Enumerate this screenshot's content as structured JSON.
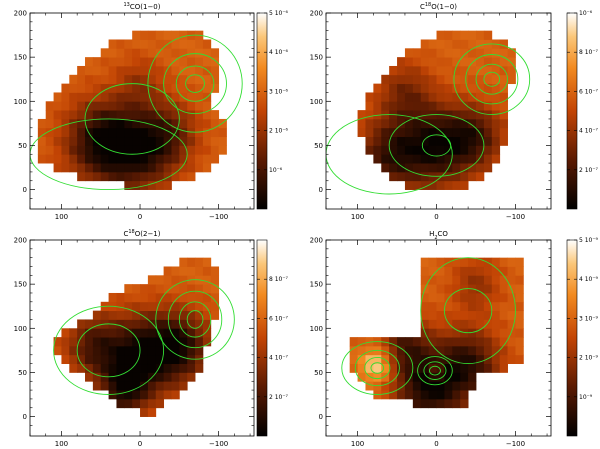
{
  "chart_data": [
    {
      "type": "heatmap",
      "title": "13CO(1-0)",
      "title_parts": [
        "13",
        "CO(1−0)"
      ],
      "xlim": [
        140,
        -145
      ],
      "ylim": [
        -22,
        200
      ],
      "x_ticks": [
        100,
        0,
        -100
      ],
      "y_ticks": [
        0,
        50,
        100,
        150,
        200
      ],
      "colorbar": {
        "range": [
          0,
          5e-06
        ],
        "ticks": [
          {
            "v": 1e-06,
            "label": "10⁻⁶"
          },
          {
            "v": 2e-06,
            "label": "2 10⁻⁶"
          },
          {
            "v": 3e-06,
            "label": "3 10⁻⁶"
          },
          {
            "v": 4e-06,
            "label": "4 10⁻⁶"
          },
          {
            "v": 5e-06,
            "label": "5 10⁻⁶"
          }
        ]
      },
      "blobs": [
        {
          "x": 50,
          "y": 55,
          "r": 45,
          "s": 1.0
        },
        {
          "x": 0,
          "y": 45,
          "r": 45,
          "s": 0.9
        },
        {
          "x": -40,
          "y": 65,
          "r": 35,
          "s": 0.5
        },
        {
          "x": 0,
          "y": 120,
          "r": 30,
          "s": 0.35
        }
      ],
      "edge": [
        [
          -90,
          100
        ],
        [
          -100,
          130
        ],
        [
          -95,
          160
        ],
        [
          -70,
          180
        ],
        [
          -30,
          185
        ],
        [
          5,
          178
        ],
        [
          40,
          165
        ],
        [
          70,
          145
        ],
        [
          100,
          115
        ],
        [
          125,
          85
        ],
        [
          135,
          55
        ],
        [
          130,
          30
        ],
        [
          100,
          20
        ],
        [
          60,
          10
        ],
        [
          20,
          5
        ],
        [
          -20,
          0
        ],
        [
          -60,
          10
        ],
        [
          -110,
          40
        ],
        [
          -115,
          70
        ]
      ],
      "contours": [
        {
          "x": -70,
          "y": 120,
          "radii": [
            [
              12,
              10
            ],
            [
              24,
              20
            ],
            [
              40,
              34
            ],
            [
              60,
              55
            ]
          ]
        },
        {
          "x": 10,
          "y": 80,
          "radii": [
            [
              60,
              40
            ]
          ]
        },
        {
          "x": 40,
          "y": 40,
          "radii": [
            [
              100,
              40
            ]
          ]
        }
      ]
    },
    {
      "type": "heatmap",
      "title": "C18O(1-0)",
      "title_parts": [
        "C",
        "18",
        "O(1−0)"
      ],
      "xlim": [
        140,
        -145
      ],
      "ylim": [
        -22,
        200
      ],
      "x_ticks": [
        100,
        0,
        -100
      ],
      "y_ticks": [
        0,
        50,
        100,
        150,
        200
      ],
      "colorbar": {
        "range": [
          0,
          1e-06
        ],
        "ticks": [
          {
            "v": 2e-07,
            "label": "2 10⁻⁷"
          },
          {
            "v": 4e-07,
            "label": "4 10⁻⁷"
          },
          {
            "v": 6e-07,
            "label": "6 10⁻⁷"
          },
          {
            "v": 8e-07,
            "label": "8 10⁻⁷"
          },
          {
            "v": 1e-06,
            "label": "10⁻⁶"
          }
        ]
      },
      "blobs": [
        {
          "x": 0,
          "y": 50,
          "r": 45,
          "s": 1.0
        },
        {
          "x": 60,
          "y": 40,
          "r": 40,
          "s": 0.8
        },
        {
          "x": -50,
          "y": 60,
          "r": 35,
          "s": 0.7
        },
        {
          "x": 40,
          "y": 110,
          "r": 35,
          "s": 0.5
        }
      ],
      "edge": [
        [
          -90,
          100
        ],
        [
          -100,
          135
        ],
        [
          -95,
          160
        ],
        [
          -70,
          175
        ],
        [
          -40,
          180
        ],
        [
          0,
          175
        ],
        [
          30,
          160
        ],
        [
          60,
          140
        ],
        [
          85,
          115
        ],
        [
          100,
          80
        ],
        [
          90,
          45
        ],
        [
          70,
          20
        ],
        [
          40,
          5
        ],
        [
          0,
          -5
        ],
        [
          -40,
          5
        ],
        [
          -70,
          25
        ],
        [
          -85,
          55
        ]
      ],
      "contours": [
        {
          "x": -70,
          "y": 125,
          "radii": [
            [
              10,
              8
            ],
            [
              20,
              17
            ],
            [
              33,
              28
            ],
            [
              48,
              40
            ]
          ]
        },
        {
          "x": 0,
          "y": 50,
          "radii": [
            [
              18,
              12
            ],
            [
              60,
              35
            ]
          ]
        },
        {
          "x": 60,
          "y": 40,
          "radii": [
            [
              80,
              45
            ]
          ]
        }
      ]
    },
    {
      "type": "heatmap",
      "title": "C18O(2-1)",
      "title_parts": [
        "C",
        "18",
        "O(2−1)"
      ],
      "xlim": [
        140,
        -145
      ],
      "ylim": [
        -22,
        200
      ],
      "x_ticks": [
        100,
        0,
        -100
      ],
      "y_ticks": [
        0,
        50,
        100,
        150,
        200
      ],
      "colorbar": {
        "range": [
          0,
          1e-06
        ],
        "ticks": [
          {
            "v": 2e-07,
            "label": "2 10⁻⁷"
          },
          {
            "v": 4e-07,
            "label": "4 10⁻⁷"
          },
          {
            "v": 6e-07,
            "label": "6 10⁻⁷"
          },
          {
            "v": 8e-07,
            "label": "8 10⁻⁷"
          }
        ]
      },
      "blobs": [
        {
          "x": 0,
          "y": 70,
          "r": 45,
          "s": 1.0
        },
        {
          "x": 60,
          "y": 80,
          "r": 35,
          "s": 0.7
        },
        {
          "x": -50,
          "y": 80,
          "r": 40,
          "s": 0.9
        },
        {
          "x": 20,
          "y": 30,
          "r": 30,
          "s": 0.8
        }
      ],
      "edge": [
        [
          -80,
          60
        ],
        [
          -90,
          100
        ],
        [
          -100,
          130
        ],
        [
          -95,
          170
        ],
        [
          -80,
          185
        ],
        [
          -55,
          180
        ],
        [
          -30,
          165
        ],
        [
          0,
          150
        ],
        [
          35,
          140
        ],
        [
          60,
          115
        ],
        [
          90,
          100
        ],
        [
          110,
          85
        ],
        [
          105,
          65
        ],
        [
          80,
          50
        ],
        [
          60,
          35
        ],
        [
          20,
          10
        ],
        [
          -10,
          0
        ],
        [
          -40,
          20
        ],
        [
          -65,
          40
        ]
      ],
      "contours": [
        {
          "x": -70,
          "y": 110,
          "radii": [
            [
              10,
              10
            ],
            [
              20,
              20
            ],
            [
              34,
              32
            ],
            [
              50,
              45
            ]
          ]
        },
        {
          "x": 40,
          "y": 75,
          "radii": [
            [
              40,
              30
            ],
            [
              70,
              50
            ]
          ]
        }
      ]
    },
    {
      "type": "heatmap",
      "title": "H2CO",
      "title_parts": [
        "H",
        "2",
        "CO"
      ],
      "xlim": [
        140,
        -145
      ],
      "ylim": [
        -22,
        200
      ],
      "x_ticks": [
        100,
        0,
        -100
      ],
      "y_ticks": [
        0,
        50,
        100,
        150,
        200
      ],
      "colorbar": {
        "range": [
          0,
          5e-09
        ],
        "ticks": [
          {
            "v": 1e-09,
            "label": "10⁻⁹"
          },
          {
            "v": 2e-09,
            "label": "2 10⁻⁹"
          },
          {
            "v": 3e-09,
            "label": "3 10⁻⁹"
          },
          {
            "v": 4e-09,
            "label": "4 10⁻⁹"
          },
          {
            "v": 5e-09,
            "label": "5 10⁻⁹"
          }
        ]
      },
      "blobs": [
        {
          "x": 10,
          "y": 30,
          "r": 40,
          "s": 1.0
        },
        {
          "x": 40,
          "y": 80,
          "r": 35,
          "s": 0.7
        },
        {
          "x": -40,
          "y": 60,
          "r": 40,
          "s": 0.9
        },
        {
          "x": -50,
          "y": 150,
          "r": 30,
          "s": 0.4
        }
      ],
      "edge": [
        [
          110,
          50
        ],
        [
          110,
          90
        ],
        [
          20,
          92
        ],
        [
          20,
          180
        ],
        [
          -70,
          185
        ],
        [
          -105,
          175
        ],
        [
          -105,
          60
        ],
        [
          -80,
          48
        ],
        [
          -50,
          48
        ],
        [
          -40,
          20
        ],
        [
          -30,
          10
        ],
        [
          0,
          5
        ],
        [
          20,
          10
        ],
        [
          40,
          20
        ],
        [
          80,
          25
        ]
      ],
      "hot": [
        {
          "x": 75,
          "y": 60,
          "r": 20,
          "s": 0.8
        },
        {
          "x": 0,
          "y": 52,
          "r": 8,
          "s": 0.5
        }
      ],
      "contours": [
        {
          "x": 75,
          "y": 55,
          "radii": [
            [
              8,
              6
            ],
            [
              16,
              12
            ],
            [
              28,
              20
            ],
            [
              45,
              30
            ]
          ]
        },
        {
          "x": 2,
          "y": 52,
          "radii": [
            [
              7,
              5
            ],
            [
              14,
              10
            ],
            [
              22,
              16
            ]
          ]
        },
        {
          "x": -40,
          "y": 120,
          "radii": [
            [
              30,
              25
            ],
            [
              60,
              60
            ]
          ]
        }
      ]
    }
  ]
}
